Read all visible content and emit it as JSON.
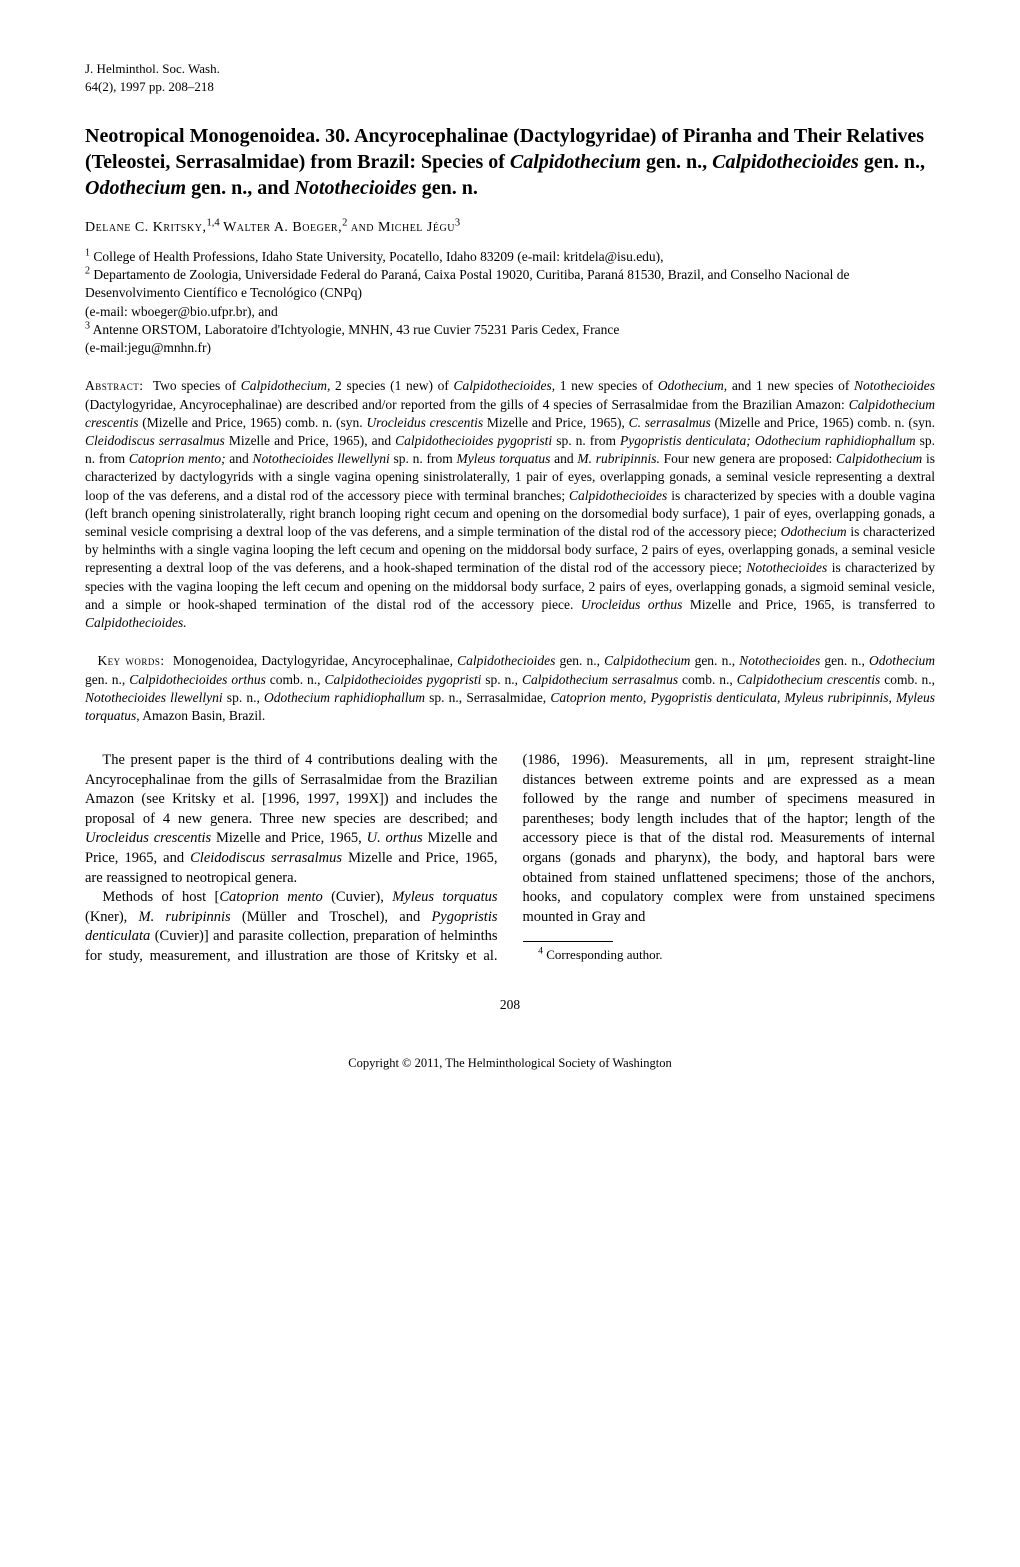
{
  "journal": {
    "line1": "J. Helminthol. Soc. Wash.",
    "line2": "64(2), 1997 pp. 208–218"
  },
  "title_html": "Neotropical Monogenoidea. 30. Ancyrocephalinae (Dactylogyridae) of Piranha and Their Relatives (Teleostei, Serrasalmidae) from Brazil: Species of <span class=\"italic\">Calpidothecium</span> gen. n., <span class=\"italic\">Calpidothecioides</span> gen. n., <span class=\"italic\">Odothecium</span> gen. n., and <span class=\"italic\">Notothecioides</span> gen. n.",
  "authors_html": "<span class=\"smallcaps\">Delane C. Kritsky,</span><sup>1,4</sup> <span class=\"smallcaps\">Walter A. Boeger,</span><sup>2</sup> <span class=\"smallcaps\">and Michel Jégu</span><sup>3</sup>",
  "affiliations_html": "<sup>1</sup> College of Health Professions, Idaho State University, Pocatello, Idaho 83209 (e-mail: kritdela@isu.edu),<br><sup>2</sup> Departamento de Zoologia, Universidade Federal do Paraná, Caixa Postal 19020, Curitiba, Paraná 81530, Brazil, and Conselho Nacional de Desenvolvimento Científico e Tecnológico (CNPq)<br>(e-mail: wboeger@bio.ufpr.br), and<br><sup>3</sup> Antenne ORSTOM, Laboratoire d'Ichtyologie, MNHN, 43 rue Cuvier 75231 Paris Cedex, France<br>(e-mail:jegu@mnhn.fr)",
  "abstract_label": "Abstract:",
  "abstract_html": "Two species of <em>Calpidothecium,</em> 2 species (1 new) of <em>Calpidothecioides,</em> 1 new species of <em>Odothecium,</em> and 1 new species of <em>Notothecioides</em> (Dactylogyridae, Ancyrocephalinae) are described and/or reported from the gills of 4 species of Serrasalmidae from the Brazilian Amazon: <em>Calpidothecium crescentis</em> (Mizelle and Price, 1965) comb. n. (syn. <em>Urocleidus crescentis</em> Mizelle and Price, 1965), <em>C. serrasalmus</em> (Mizelle and Price, 1965) comb. n. (syn. <em>Cleidodiscus serrasalmus</em> Mizelle and Price, 1965), and <em>Calpidothecioides pygopristi</em> sp. n. from <em>Pygopristis denticulata; Odothecium raphidiophallum</em> sp. n. from <em>Catoprion mento;</em> and <em>Notothecioides llewellyni</em> sp. n. from <em>Myleus torquatus</em> and <em>M. rubripinnis.</em> Four new genera are proposed: <em>Calpidothecium</em> is characterized by dactylogyrids with a single vagina opening sinistrolaterally, 1 pair of eyes, overlapping gonads, a seminal vesicle representing a dextral loop of the vas deferens, and a distal rod of the accessory piece with terminal branches; <em>Calpidothecioides</em> is characterized by species with a double vagina (left branch opening sinistrolaterally, right branch looping right cecum and opening on the dorsomedial body surface), 1 pair of eyes, overlapping gonads, a seminal vesicle comprising a dextral loop of the vas deferens, and a simple termination of the distal rod of the accessory piece; <em>Odothecium</em> is characterized by helminths with a single vagina looping the left cecum and opening on the middorsal body surface, 2 pairs of eyes, overlapping gonads, a seminal vesicle representing a dextral loop of the vas deferens, and a hook-shaped termination of the distal rod of the accessory piece; <em>Notothecioides</em> is characterized by species with the vagina looping the left cecum and opening on the middorsal body surface, 2 pairs of eyes, overlapping gonads, a sigmoid seminal vesicle, and a simple or hook-shaped termination of the distal rod of the accessory piece. <em>Urocleidus orthus</em> Mizelle and Price, 1965, is transferred to <em>Calpidothecioides.</em>",
  "keywords_label": "Key words:",
  "keywords_html": "Monogenoidea, Dactylogyridae, Ancyrocephalinae, <em>Calpidothecioides</em> gen. n., <em>Calpidothecium</em> gen. n., <em>Notothecioides</em> gen. n., <em>Odothecium</em> gen. n., <em>Calpidothecioides orthus</em> comb. n., <em>Calpidothecioides pygopristi</em> sp. n., <em>Calpidothecium serrasalmus</em> comb. n., <em>Calpidothecium crescentis</em> comb. n., <em>Notothecioides llewellyni</em> sp. n., <em>Odothecium raphidiophallum</em> sp. n., Serrasalmidae, <em>Catoprion mento, Pygopristis denticulata, Myleus rubripinnis, Myleus torquatus,</em> Amazon Basin, Brazil.",
  "body_para1_html": "The present paper is the third of 4 contributions dealing with the Ancyrocephalinae from the gills of Serrasalmidae from the Brazilian Amazon (see Kritsky et al. [1996, 1997, 199X]) and includes the proposal of 4 new genera. Three new species are described; and <em>Urocleidus crescentis</em> Mizelle and Price, 1965, <em>U. orthus</em> Mizelle and Price, 1965, and <em>Cleidodiscus serrasalmus</em> Mizelle and Price, 1965, are reassigned to neotropical genera.",
  "body_para2_html": "Methods of host [<em>Catoprion mento</em> (Cuvier), <em>Myleus torquatus</em> (Kner), <em>M. rubripinnis</em> (Müller and Troschel), and <em>Pygopristis denticulata</em> (Cuvier)] and parasite collection, preparation of helminths for study, measurement, and illustration are those of Kritsky et al. (1986, 1996). Measurements, all in μm, represent straight-line distances between extreme points and are expressed as a mean followed by the range and number of specimens measured in parentheses; body length includes that of the haptor; length of the accessory piece is that of the distal rod. Measurements of internal organs (gonads and pharynx), the body, and haptoral bars were obtained from stained unflattened specimens; those of the anchors, hooks, and copulatory complex were from unstained specimens mounted in Gray and",
  "footnote_html": "<sup>4</sup> Corresponding author.",
  "page_number": "208",
  "copyright": "Copyright © 2011, The Helminthological Society of Washington"
}
